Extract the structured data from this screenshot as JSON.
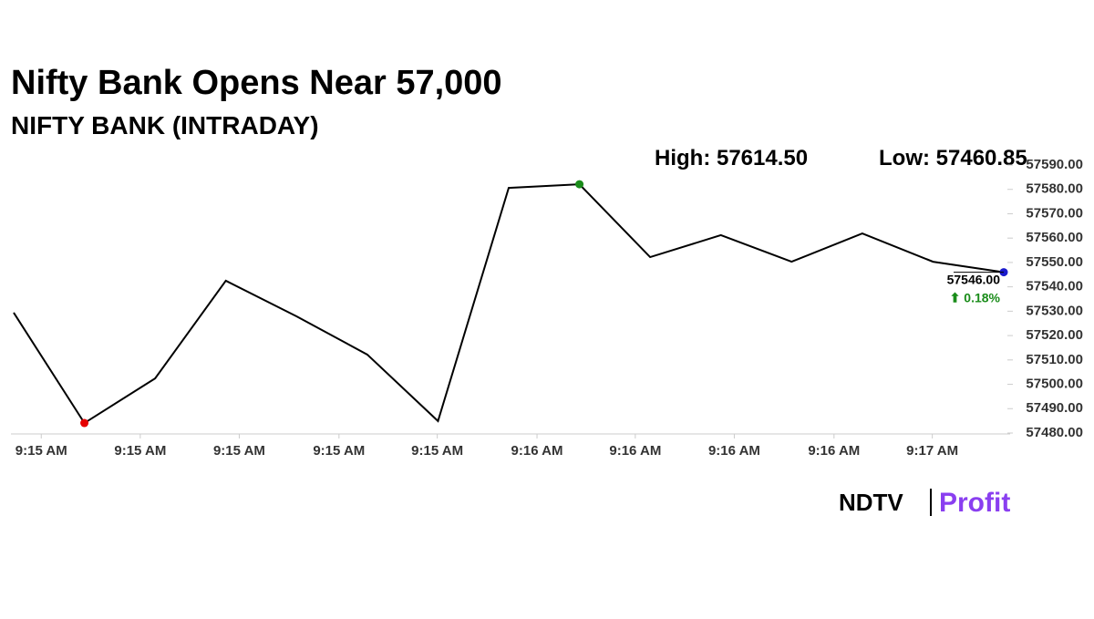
{
  "chart_data": {
    "type": "line",
    "title": "Nifty Bank Opens Near 57,000",
    "subtitle": "NIFTY BANK (INTRADAY)",
    "high_label": "High: 57614.50",
    "low_label": "Low: 57460.85",
    "x": [
      0,
      1,
      2,
      3,
      4,
      5,
      6,
      7,
      8,
      9,
      10,
      11,
      12,
      13,
      14
    ],
    "values": [
      57529.4,
      57484.1,
      57502.4,
      57542.5,
      57527.9,
      57512.2,
      57484.9,
      57580.6,
      57582.1,
      57552.2,
      57561.2,
      57550.3,
      57561.9,
      57550.3,
      57546.0
    ],
    "color": "#000000",
    "point_colors": [
      null,
      "#e60000",
      null,
      null,
      null,
      null,
      null,
      null,
      "#1a8c1a",
      null,
      null,
      null,
      null,
      null,
      "#1a1acc"
    ],
    "last_value_label": "57546.00",
    "change_label": "⬆ 0.18%",
    "change_color": "#1a8c1a",
    "xlim": [
      0,
      14
    ],
    "xticks": [
      {
        "value": 0.39,
        "label": "9:15 AM"
      },
      {
        "value": 1.79,
        "label": "9:15 AM"
      },
      {
        "value": 3.19,
        "label": "9:15 AM"
      },
      {
        "value": 4.6,
        "label": "9:15 AM"
      },
      {
        "value": 5.99,
        "label": "9:15 AM"
      },
      {
        "value": 7.4,
        "label": "9:16 AM"
      },
      {
        "value": 8.79,
        "label": "9:16 AM"
      },
      {
        "value": 10.19,
        "label": "9:16 AM"
      },
      {
        "value": 11.6,
        "label": "9:16 AM"
      },
      {
        "value": 12.99,
        "label": "9:17 AM"
      }
    ],
    "ylim": [
      57480,
      57590
    ],
    "yticks": [
      {
        "value": 57480,
        "label": "57480.00"
      },
      {
        "value": 57490,
        "label": "57490.00"
      },
      {
        "value": 57500,
        "label": "57500.00"
      },
      {
        "value": 57510,
        "label": "57510.00"
      },
      {
        "value": 57520,
        "label": "57520.00"
      },
      {
        "value": 57530,
        "label": "57530.00"
      },
      {
        "value": 57540,
        "label": "57540.00"
      },
      {
        "value": 57550,
        "label": "57550.00"
      },
      {
        "value": 57560,
        "label": "57560.00"
      },
      {
        "value": 57570,
        "label": "57570.00"
      },
      {
        "value": 57580,
        "label": "57580.00"
      },
      {
        "value": 57590,
        "label": "57590.00"
      }
    ],
    "logo_left": "NDTV",
    "logo_right": "Profit"
  }
}
